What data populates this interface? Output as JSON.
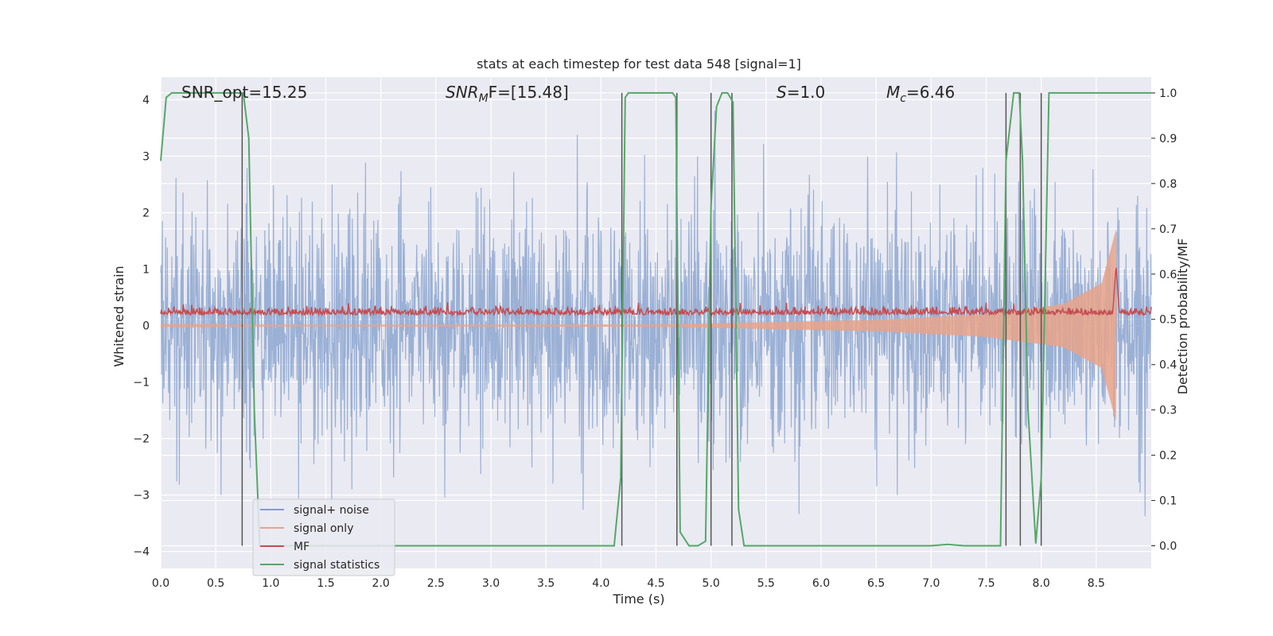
{
  "chart_data": {
    "type": "line",
    "title": "stats at each timestep for test data 548 [signal=1]",
    "xlabel": "Time (s)",
    "ylabel": "Whitened strain",
    "y2label": "Detection probability/MF",
    "xlim": [
      0.0,
      9.0
    ],
    "ylim": [
      -4.3,
      4.4
    ],
    "y2lim": [
      -0.05,
      1.035
    ],
    "xticks": [
      "0.0",
      "0.5",
      "1.0",
      "1.5",
      "2.0",
      "2.5",
      "3.0",
      "3.5",
      "4.0",
      "4.5",
      "5.0",
      "5.5",
      "6.0",
      "6.5",
      "7.0",
      "7.5",
      "8.0",
      "8.5"
    ],
    "yticks": [
      "−4",
      "−3",
      "−2",
      "−1",
      "0",
      "1",
      "2",
      "3",
      "4"
    ],
    "y2ticks": [
      "0.0",
      "0.1",
      "0.2",
      "0.3",
      "0.4",
      "0.5",
      "0.6",
      "0.7",
      "0.8",
      "0.9",
      "1.0"
    ],
    "grid": true,
    "legend_position": "lower-left",
    "annotations": {
      "snr_opt": "SNR_opt=15.25",
      "snr_mf_italic": "SNR",
      "snr_mf_sub": "M",
      "snr_mf_rest": "F=[15.48]",
      "s_italic": "S",
      "s_rest": "=1.0",
      "mc_italic": "M",
      "mc_sub": "c",
      "mc_rest": "=6.46"
    },
    "series": [
      {
        "name": "signal+ noise",
        "color": "#7f9ccb",
        "noise_sigma": 1.0,
        "peak_abs": 4.0
      },
      {
        "name": "signal only",
        "color": "#e8a38a",
        "envelope": {
          "t": [
            0.0,
            4.5,
            6.5,
            7.5,
            8.2,
            8.55,
            8.68
          ],
          "amp": [
            0.01,
            0.02,
            0.1,
            0.2,
            0.38,
            0.75,
            1.7
          ]
        }
      },
      {
        "name": "MF",
        "color": "#c44e52",
        "baseline": 0.51,
        "peak": {
          "t": 8.68,
          "value": 0.62
        }
      },
      {
        "name": "signal statistics",
        "color": "#55a868",
        "t": [
          0.0,
          0.05,
          0.1,
          0.2,
          0.5,
          0.7,
          0.75,
          0.8,
          0.85,
          0.9,
          1.0,
          2.0,
          3.0,
          4.0,
          4.12,
          4.18,
          4.22,
          4.25,
          4.5,
          4.65,
          4.68,
          4.72,
          4.8,
          4.88,
          4.95,
          5.0,
          5.05,
          5.1,
          5.15,
          5.2,
          5.25,
          5.3,
          5.5,
          6.5,
          7.0,
          7.15,
          7.2,
          7.3,
          7.63,
          7.68,
          7.75,
          7.8,
          7.83,
          7.88,
          7.95,
          8.0,
          8.07,
          8.1,
          8.5,
          9.0
        ],
        "values": [
          0.85,
          0.99,
          1.0,
          1.0,
          1.0,
          1.0,
          1.0,
          0.9,
          0.3,
          0.0,
          0.0,
          0.0,
          0.0,
          0.0,
          0.0,
          0.15,
          0.99,
          1.0,
          1.0,
          1.0,
          0.99,
          0.03,
          0.0,
          0.0,
          0.01,
          0.75,
          0.97,
          1.0,
          1.0,
          0.98,
          0.08,
          0.0,
          0.0,
          0.0,
          0.0,
          0.003,
          0.002,
          0.0,
          0.0,
          0.85,
          1.0,
          1.0,
          0.85,
          0.3,
          0.005,
          0.15,
          1.0,
          1.0,
          1.0,
          1.0
        ]
      }
    ],
    "vlines": [
      0.74,
      4.19,
      4.69,
      5.0,
      5.19,
      7.68,
      7.81,
      8.0
    ]
  }
}
